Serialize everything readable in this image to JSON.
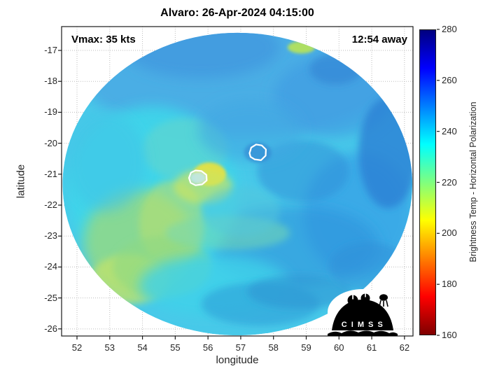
{
  "logo": {
    "text": "C I M S S"
  },
  "chart_data": {
    "type": "heatmap",
    "title": "Alvaro: 26-Apr-2024 04:15:00",
    "xlabel": "longitude",
    "ylabel": "latitude",
    "xlim": [
      51.53,
      62.26
    ],
    "ylim": [
      -26.23,
      -16.23
    ],
    "xticks": [
      52,
      53,
      54,
      55,
      56,
      57,
      58,
      59,
      60,
      61,
      62
    ],
    "yticks": [
      -17,
      -18,
      -19,
      -20,
      -21,
      -22,
      -23,
      -24,
      -25,
      -26
    ],
    "grid": true,
    "annotations": {
      "vmax": "Vmax: 35 kts",
      "away": "12:54 away"
    },
    "colorbar": {
      "label": "Brightness Temp - Horizontal Polarization",
      "min": 160,
      "max": 280,
      "ticks": [
        280,
        260,
        240,
        220,
        200,
        180,
        160
      ],
      "stops_top_to_bottom": [
        "#00007F",
        "#0000FF",
        "#007FFF",
        "#00FFFF",
        "#7FFF7F",
        "#FFFF00",
        "#FF7F00",
        "#FF0000",
        "#7F0000"
      ]
    },
    "swath": {
      "center": [
        56.9,
        -21.32
      ],
      "rx_deg": 5.34,
      "ry_deg": 4.89,
      "base_color": "#48c9e9"
    },
    "features": [
      {
        "lon": 56.9,
        "lat": -17.8,
        "rx": 4.8,
        "ry": 2.0,
        "color": "#4aa9e4",
        "opacity": 0.85,
        "blur": "lg"
      },
      {
        "lon": 55.8,
        "lat": -16.9,
        "rx": 2.4,
        "ry": 1.0,
        "color": "#3e96de",
        "opacity": 0.7,
        "blur": "lg"
      },
      {
        "lon": 59.8,
        "lat": -18.5,
        "rx": 1.8,
        "ry": 1.3,
        "color": "#3e9ce2",
        "opacity": 0.7,
        "blur": "lg"
      },
      {
        "lon": 60.6,
        "lat": -22.3,
        "rx": 1.7,
        "ry": 2.0,
        "color": "#35a0e6",
        "opacity": 0.75,
        "blur": "lg"
      },
      {
        "lon": 61.5,
        "lat": -20.3,
        "rx": 0.9,
        "ry": 1.8,
        "color": "#2a7fd4",
        "opacity": 0.8,
        "blur": "md"
      },
      {
        "lon": 58.6,
        "lat": -23.3,
        "rx": 2.6,
        "ry": 1.3,
        "color": "#2f93dc",
        "opacity": 0.6,
        "blur": "lg"
      },
      {
        "lon": 58.9,
        "lat": -20.9,
        "rx": 1.4,
        "ry": 1.0,
        "color": "#2f8fd8",
        "opacity": 0.55,
        "blur": "md"
      },
      {
        "lon": 54.3,
        "lat": -21.6,
        "rx": 2.6,
        "ry": 2.8,
        "color": "#3fd6ea",
        "opacity": 0.9,
        "blur": "lg"
      },
      {
        "lon": 53.9,
        "lat": -23.2,
        "rx": 1.7,
        "ry": 1.7,
        "color": "#98da7e",
        "opacity": 0.8,
        "blur": "lg"
      },
      {
        "lon": 53.6,
        "lat": -24.4,
        "rx": 1.2,
        "ry": 0.8,
        "color": "#c2e36a",
        "opacity": 0.75,
        "blur": "md"
      },
      {
        "lon": 54.9,
        "lat": -22.6,
        "rx": 1.0,
        "ry": 1.4,
        "color": "#b5e070",
        "opacity": 0.6,
        "blur": "md"
      },
      {
        "lon": 54.6,
        "lat": -24.0,
        "rx": 1.5,
        "ry": 1.0,
        "color": "#8ed884",
        "opacity": 0.6,
        "blur": "md"
      },
      {
        "lon": 55.3,
        "lat": -20.2,
        "rx": 1.3,
        "ry": 1.0,
        "color": "#66d6c8",
        "opacity": 0.55,
        "blur": "md"
      },
      {
        "lon": 56.05,
        "lat": -21.0,
        "rx": 0.5,
        "ry": 0.38,
        "color": "#e8e23e",
        "opacity": 0.95,
        "blur": "sm"
      },
      {
        "lon": 55.85,
        "lat": -21.4,
        "rx": 0.9,
        "ry": 0.55,
        "color": "#cde45e",
        "opacity": 0.7,
        "blur": "md"
      },
      {
        "lon": 56.6,
        "lat": -22.9,
        "rx": 1.9,
        "ry": 0.55,
        "color": "#74d9b2",
        "opacity": 0.55,
        "blur": "md"
      },
      {
        "lon": 56.2,
        "lat": -24.6,
        "rx": 2.3,
        "ry": 1.0,
        "color": "#3fd2ea",
        "opacity": 0.8,
        "blur": "lg"
      },
      {
        "lon": 57.6,
        "lat": -25.2,
        "rx": 1.8,
        "ry": 0.7,
        "color": "#2f9fd8",
        "opacity": 0.6,
        "blur": "md"
      },
      {
        "lon": 58.8,
        "lat": -24.8,
        "rx": 1.6,
        "ry": 0.55,
        "color": "#2e95d4",
        "opacity": 0.6,
        "blur": "md"
      },
      {
        "lon": 57.3,
        "lat": -19.6,
        "rx": 1.6,
        "ry": 1.0,
        "color": "#3fa9e2",
        "opacity": 0.6,
        "blur": "lg"
      },
      {
        "lon": 58.85,
        "lat": -16.9,
        "rx": 0.42,
        "ry": 0.2,
        "color": "#b9e455",
        "opacity": 0.9,
        "blur": "sm"
      },
      {
        "lon": 57.52,
        "lat": -20.3,
        "rx": 0.42,
        "ry": 0.33,
        "color": "#2f7fd0",
        "opacity": 0.55,
        "blur": "sm"
      },
      {
        "lon": 55.7,
        "lat": -21.12,
        "rx": 0.26,
        "ry": 0.2,
        "color": "#bfe8f2",
        "opacity": 0.85,
        "blur": "sm"
      },
      {
        "lon": 52.9,
        "lat": -20.6,
        "rx": 1.2,
        "ry": 1.6,
        "color": "#3fc4e6",
        "opacity": 0.6,
        "blur": "lg"
      },
      {
        "lon": 57.0,
        "lat": -22.2,
        "rx": 1.2,
        "ry": 0.8,
        "color": "#52c8dc",
        "opacity": 0.5,
        "blur": "md"
      },
      {
        "lon": 59.9,
        "lat": -17.6,
        "rx": 0.8,
        "ry": 0.5,
        "color": "#2d7fd2",
        "opacity": 0.55,
        "blur": "md"
      },
      {
        "lon": 60.9,
        "lat": -24.0,
        "rx": 1.2,
        "ry": 0.8,
        "color": "#2f8fd8",
        "opacity": 0.55,
        "blur": "md"
      }
    ],
    "contours": [
      {
        "name": "inner-core-contour-west",
        "points": [
          [
            55.42,
            -21.12
          ],
          [
            55.48,
            -20.95
          ],
          [
            55.62,
            -20.88
          ],
          [
            55.8,
            -20.9
          ],
          [
            55.95,
            -21.02
          ],
          [
            55.96,
            -21.2
          ],
          [
            55.82,
            -21.33
          ],
          [
            55.62,
            -21.36
          ],
          [
            55.47,
            -21.28
          ]
        ]
      },
      {
        "name": "inner-core-contour-east",
        "points": [
          [
            57.27,
            -20.32
          ],
          [
            57.32,
            -20.14
          ],
          [
            57.47,
            -20.04
          ],
          [
            57.64,
            -20.07
          ],
          [
            57.77,
            -20.2
          ],
          [
            57.76,
            -20.4
          ],
          [
            57.62,
            -20.55
          ],
          [
            57.42,
            -20.52
          ],
          [
            57.3,
            -20.44
          ]
        ]
      }
    ]
  }
}
